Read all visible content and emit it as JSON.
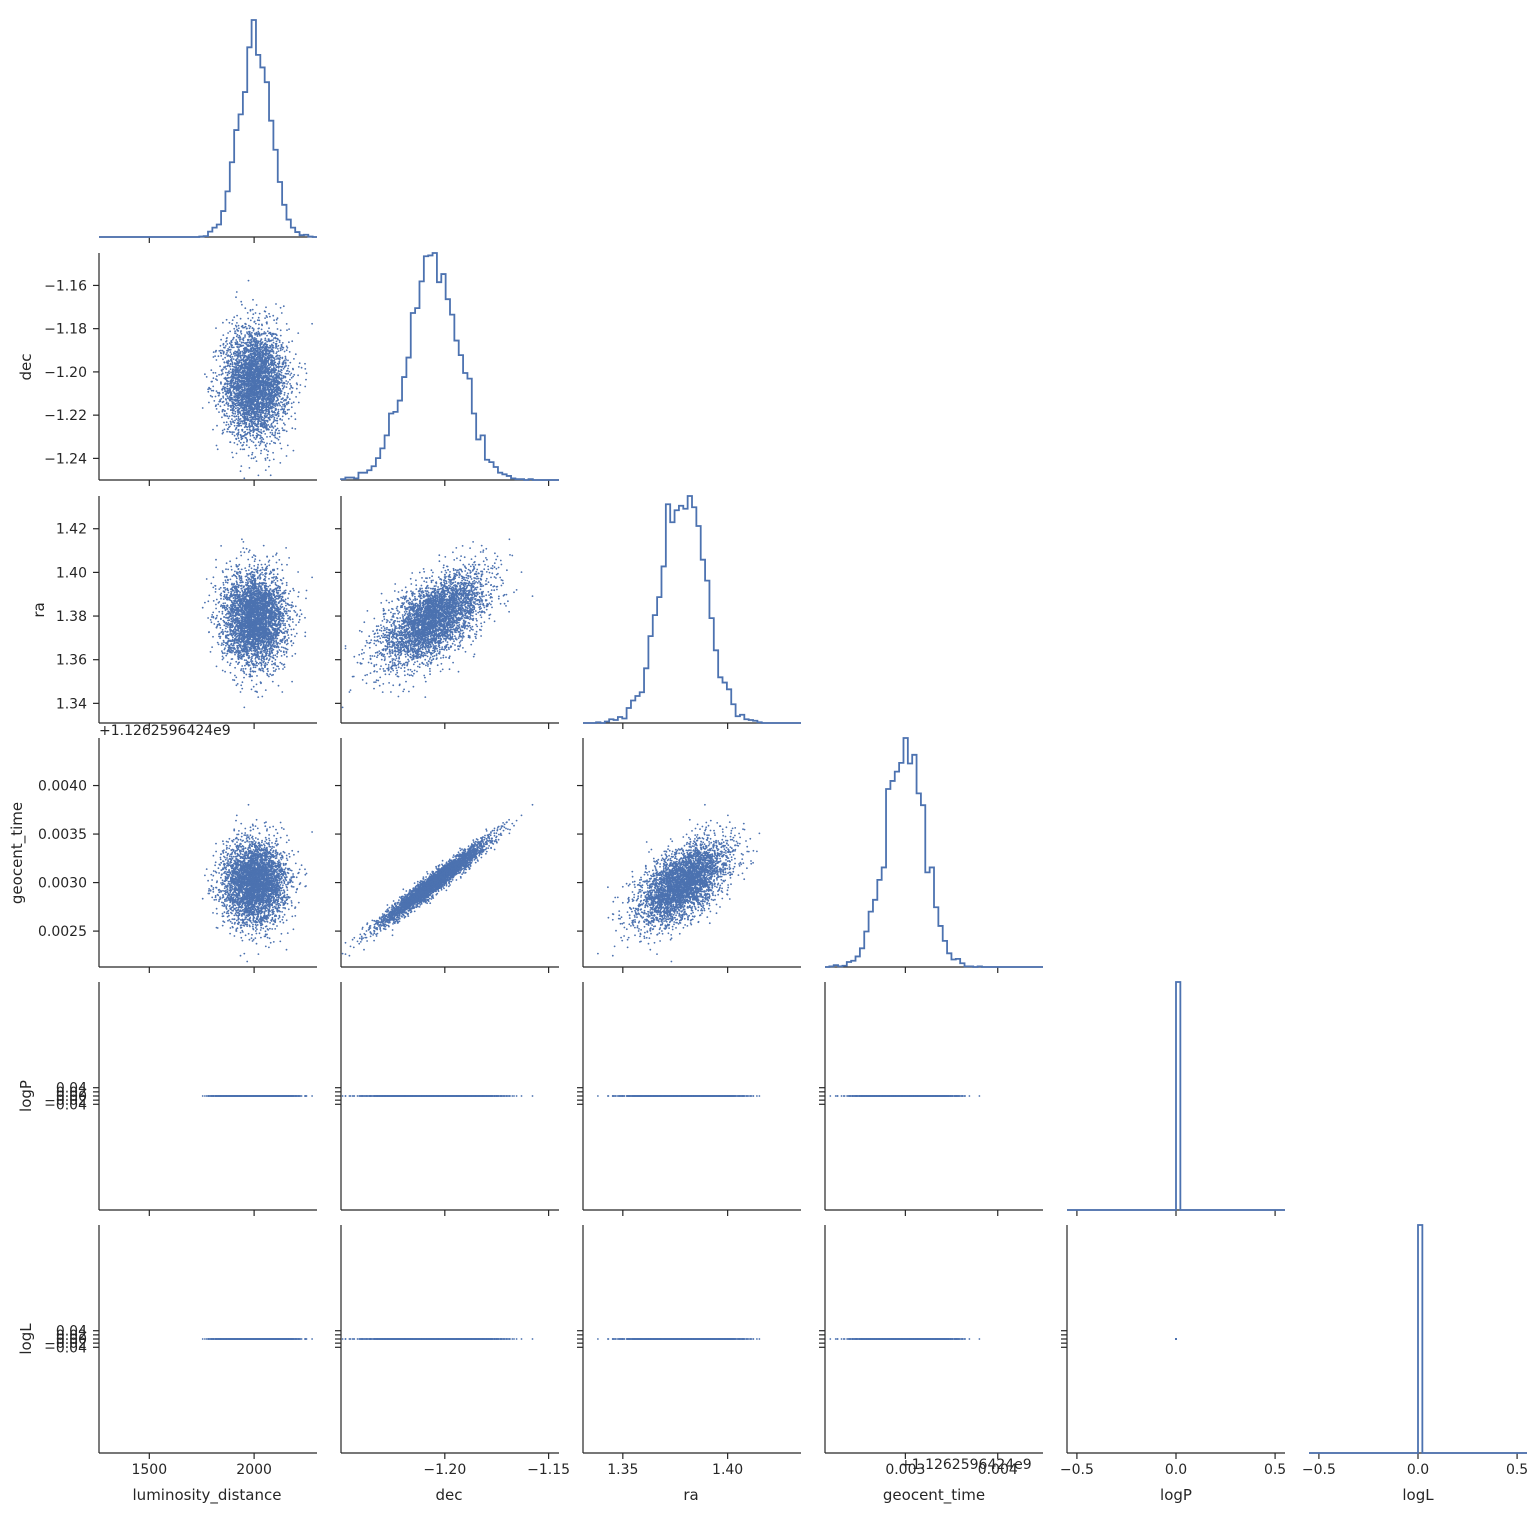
{
  "chart_data": {
    "type": "scatter",
    "layout": "pair-plot-lower-triangle",
    "diagonal": "step-histogram",
    "offdiagonal": "scatter",
    "color": "#4c72b0",
    "grid": false,
    "variables": [
      {
        "name": "luminosity_distance",
        "label": "luminosity_distance",
        "mean": 2005,
        "sd": 75,
        "min": 1300,
        "max": 2300,
        "ticks": [
          1500,
          2000
        ],
        "tick_labels": [
          "1500",
          "2000"
        ],
        "range": [
          1260,
          2300
        ]
      },
      {
        "name": "dec",
        "label": "dec",
        "mean": -1.205,
        "sd": 0.0125,
        "min": -1.248,
        "max": -1.15,
        "ticks": [
          -1.24,
          -1.22,
          -1.2,
          -1.18,
          -1.16
        ],
        "tick_labels": [
          "−1.24",
          "−1.22",
          "−1.20",
          "−1.18",
          "−1.16"
        ],
        "xticks": [
          -1.2,
          -1.15
        ],
        "xtick_labels": [
          "−1.20",
          "−1.15"
        ],
        "range": [
          -1.25,
          -1.145
        ]
      },
      {
        "name": "ra",
        "label": "ra",
        "mean": 1.379,
        "sd": 0.0105,
        "min": 1.334,
        "max": 1.432,
        "ticks": [
          1.34,
          1.36,
          1.38,
          1.4,
          1.42
        ],
        "tick_labels": [
          "1.34",
          "1.36",
          "1.38",
          "1.40",
          "1.42"
        ],
        "xticks": [
          1.35,
          1.4
        ],
        "xtick_labels": [
          "1.35",
          "1.40"
        ],
        "range": [
          1.331,
          1.435
        ]
      },
      {
        "name": "geocent_time",
        "label": "geocent_time",
        "mean": 0.003,
        "sd": 0.00021,
        "min": 0.0022,
        "max": 0.00437,
        "ticks": [
          0.0025,
          0.003,
          0.0035,
          0.004
        ],
        "tick_labels": [
          "0.0025",
          "0.0030",
          "0.0035",
          "0.0040"
        ],
        "xticks": [
          0.003,
          0.004
        ],
        "xtick_labels": [
          "0.003",
          "0.004"
        ],
        "range": [
          0.00213,
          0.00449
        ],
        "offset_label": "+1.12625964 24e9"
      },
      {
        "name": "logP",
        "label": "logP",
        "constant": 0.0,
        "ticks": [
          -0.04,
          -0.02,
          0.0,
          0.02,
          0.04
        ],
        "tick_labels": [
          "−0.04",
          "−0.02",
          "0.00",
          "0.02",
          "0.04"
        ],
        "xticks": [
          -0.5,
          0.0,
          0.5
        ],
        "xtick_labels": [
          "−0.5",
          "0.0",
          "0.5"
        ],
        "range": [
          -0.55,
          0.55
        ]
      },
      {
        "name": "logL",
        "label": "logL",
        "constant": 0.0,
        "ticks": [
          -0.04,
          -0.02,
          0.0,
          0.02,
          0.04
        ],
        "tick_labels": [
          "−0.04",
          "−0.02",
          "0.00",
          "0.02",
          "0.04"
        ],
        "xticks": [
          -0.5,
          0.0,
          0.5
        ],
        "xtick_labels": [
          "−0.5",
          "0.0",
          "0.5"
        ],
        "range": [
          -0.55,
          0.55
        ]
      }
    ],
    "correlations": [
      {
        "pair": [
          "dec",
          "ra"
        ],
        "r": 0.6
      },
      {
        "pair": [
          "dec",
          "geocent_time"
        ],
        "r": 0.97
      },
      {
        "pair": [
          "ra",
          "geocent_time"
        ],
        "r": 0.6
      }
    ],
    "offset_text_row": "+1.1262596424e9",
    "offset_text_col": "+1.1262596424e9"
  }
}
